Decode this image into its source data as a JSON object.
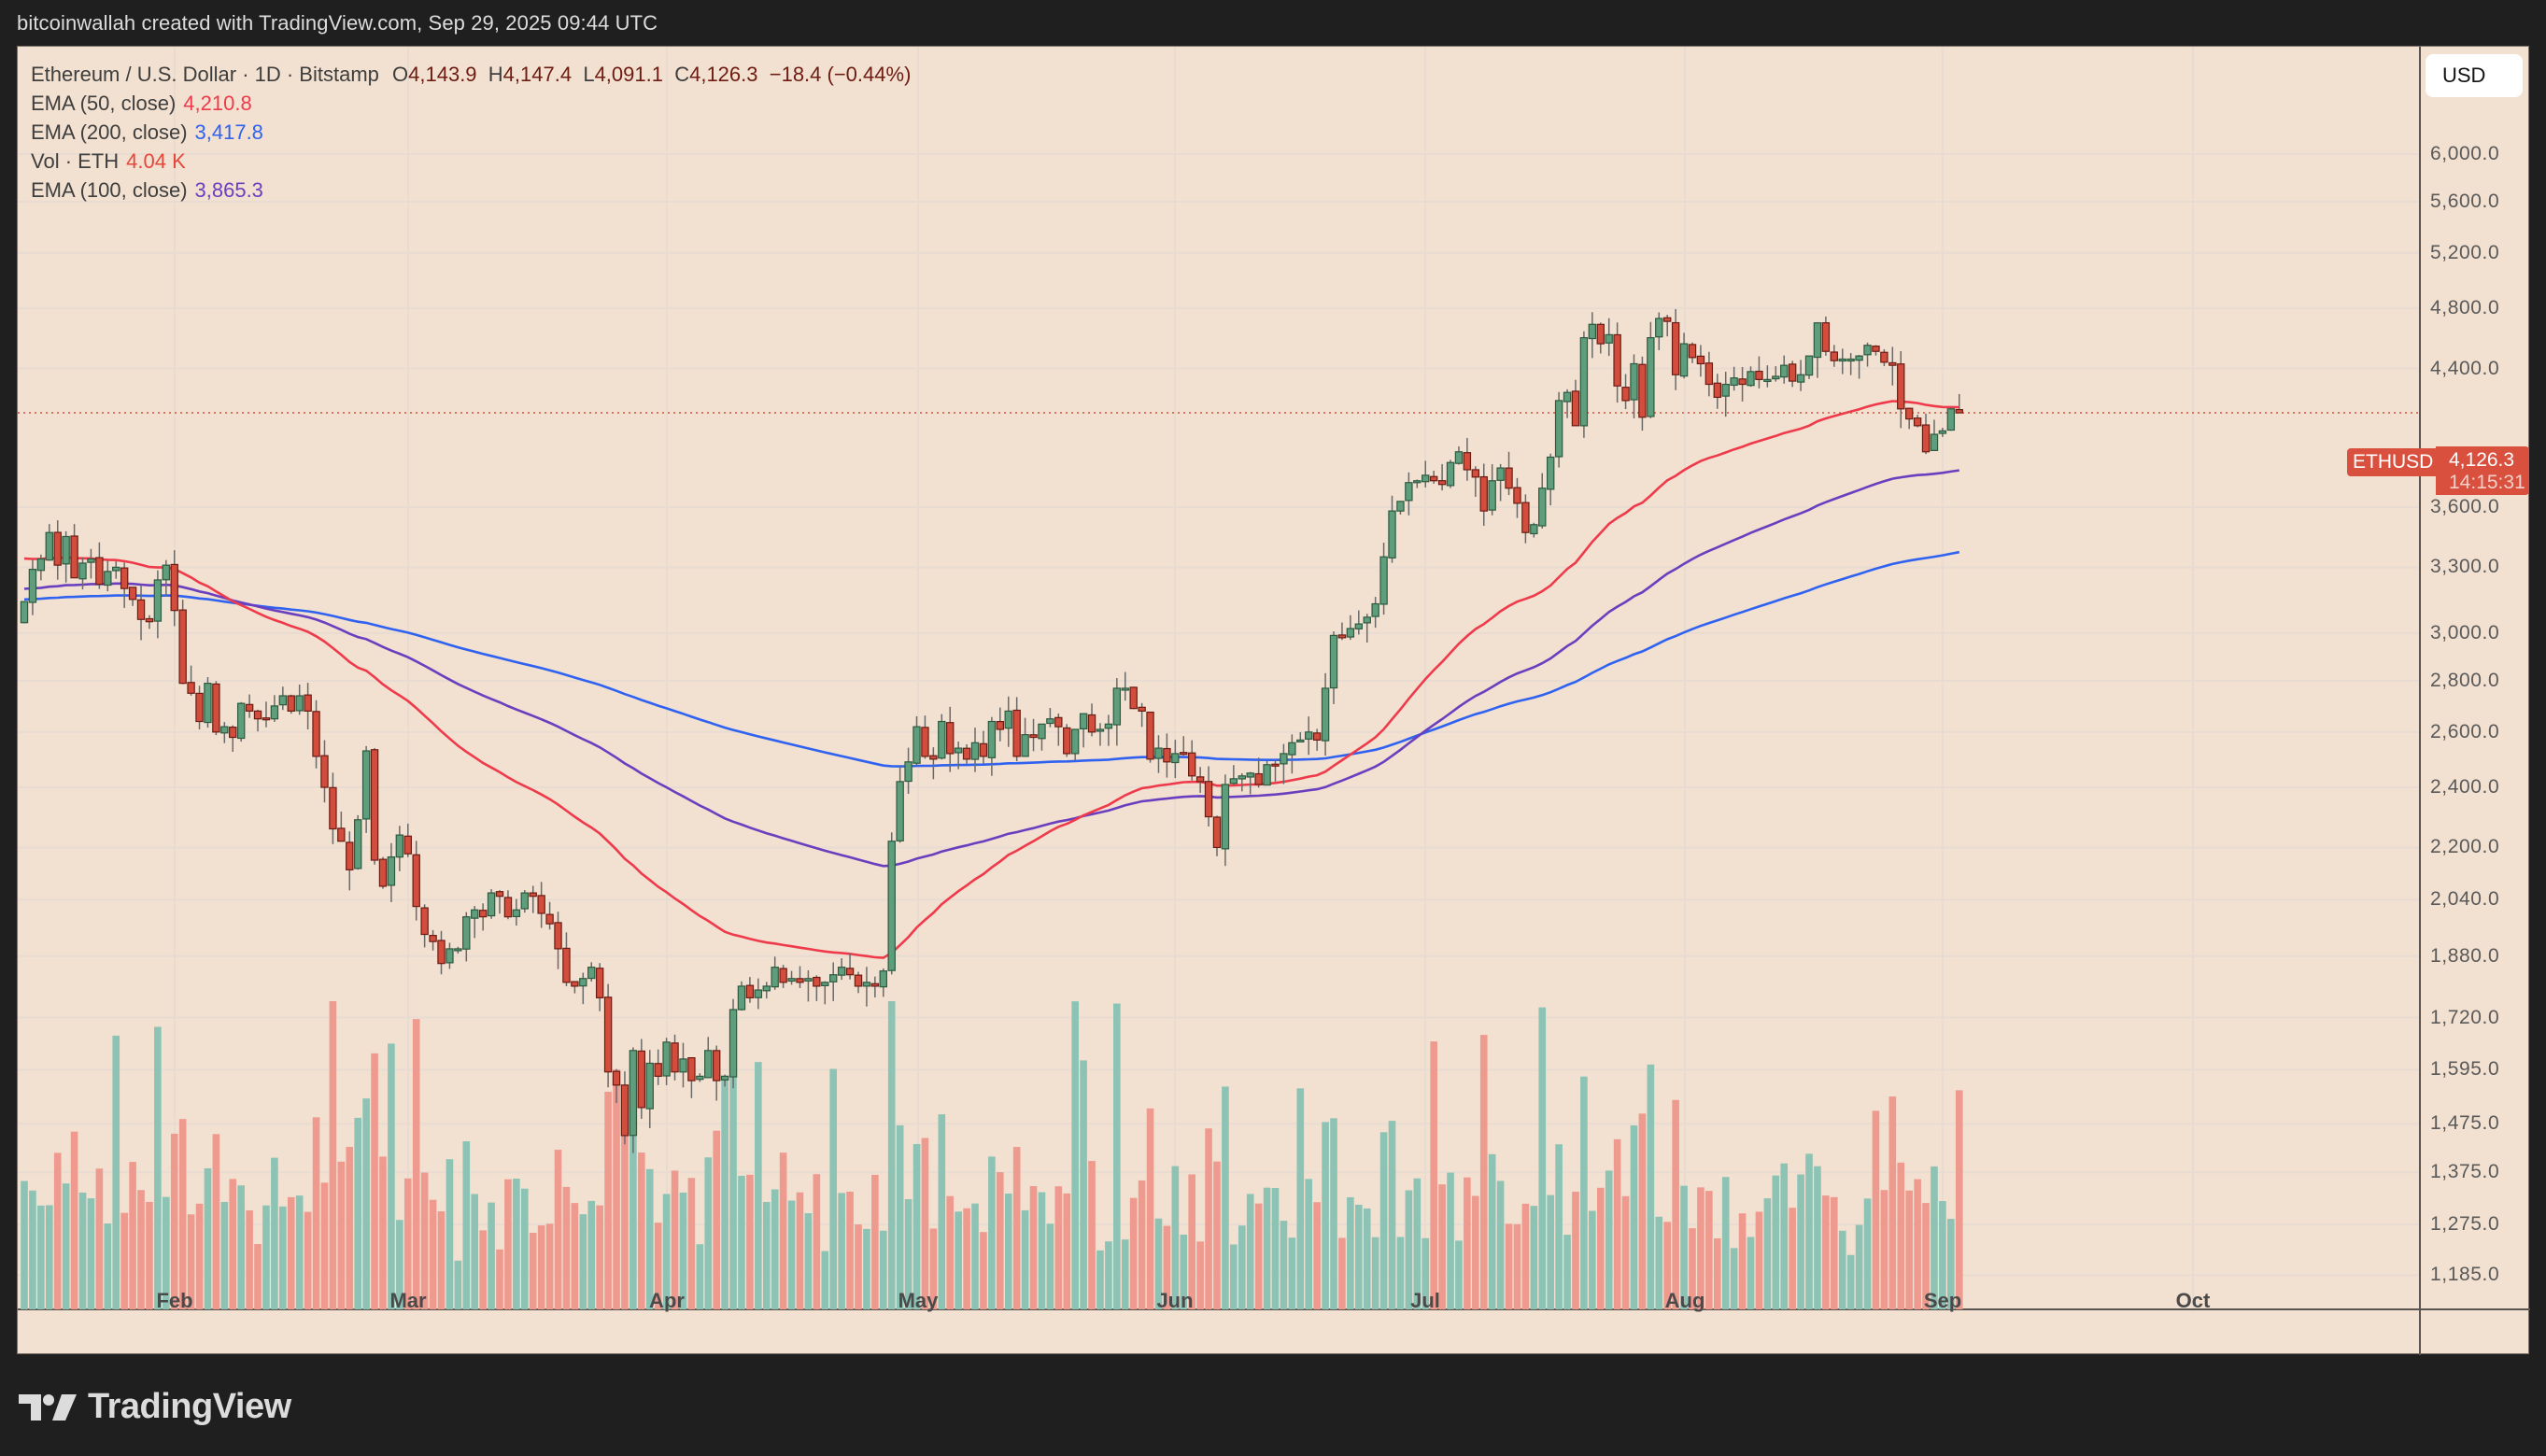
{
  "attribution": "bitcoinwallah created with TradingView.com, Sep 29, 2025 09:44 UTC",
  "legend": {
    "symbol": "Ethereum / U.S. Dollar · 1D · Bitstamp",
    "open_label": "O",
    "open": "4,143.9",
    "high_label": "H",
    "high": "4,147.4",
    "low_label": "L",
    "low": "4,091.1",
    "close_label": "C",
    "close": "4,126.3",
    "change": "−18.4 (−0.44%)",
    "ema50_label": "EMA (50, close)",
    "ema50": "4,210.8",
    "ema200_label": "EMA (200, close)",
    "ema200": "3,417.8",
    "vol_label": "Vol · ETH",
    "vol": "4.04 K",
    "ema100_label": "EMA (100, close)",
    "ema100": "3,865.3"
  },
  "currency_button": "USD",
  "price_tag": {
    "symbol": "ETHUSD",
    "price": "4,126.3",
    "countdown": "14:15:31"
  },
  "price_axis": [
    "6,000.0",
    "5,600.0",
    "5,200.0",
    "4,800.0",
    "4,400.0",
    "3,600.0",
    "3,300.0",
    "3,000.0",
    "2,800.0",
    "2,600.0",
    "2,400.0",
    "2,200.0",
    "2,040.0",
    "1,880.0",
    "1,720.0",
    "1,595.0",
    "1,475.0",
    "1,375.0",
    "1,275.0",
    "1,185.0"
  ],
  "time_axis": [
    "Feb",
    "Mar",
    "Apr",
    "May",
    "Jun",
    "Jul",
    "Aug",
    "Sep",
    "Oct"
  ],
  "logo_text": "TradingView",
  "colors": {
    "background": "#f2e0d0",
    "up": "#5f9e7c",
    "down": "#d34d3d",
    "vol_up": "#8cc3b4",
    "vol_down": "#ee9a8e",
    "ema50": "#ee3a4a",
    "ema100": "#6a3fbf",
    "ema200": "#2f62f0",
    "price_tag": "#d9503e"
  },
  "chart_data": {
    "type": "candlestick",
    "title": "Ethereum / U.S. Dollar · 1D · Bitstamp",
    "xlabel": "",
    "ylabel": "USD",
    "yscale": "log",
    "ylim": [
      1100,
      6400
    ],
    "x_start": "2025-01-13",
    "x_end": "2025-09-29",
    "closes": [
      3140,
      3290,
      3340,
      3470,
      3310,
      3450,
      3250,
      3320,
      3340,
      3220,
      3280,
      3300,
      3200,
      3150,
      3060,
      3050,
      3240,
      3310,
      3100,
      2790,
      2750,
      2640,
      2790,
      2600,
      2620,
      2580,
      2710,
      2680,
      2650,
      2650,
      2700,
      2740,
      2680,
      2740,
      2680,
      2510,
      2400,
      2260,
      2220,
      2130,
      2290,
      2530,
      2160,
      2080,
      2170,
      2240,
      2180,
      2020,
      1940,
      1920,
      1860,
      1900,
      1900,
      1990,
      2010,
      1990,
      2060,
      2050,
      1990,
      2010,
      2060,
      2050,
      2000,
      1970,
      1900,
      1810,
      1800,
      1820,
      1850,
      1770,
      1590,
      1560,
      1450,
      1640,
      1510,
      1610,
      1580,
      1660,
      1590,
      1620,
      1570,
      1580,
      1640,
      1570,
      1580,
      1740,
      1800,
      1770,
      1790,
      1800,
      1850,
      1810,
      1820,
      1810,
      1820,
      1800,
      1810,
      1830,
      1850,
      1830,
      1800,
      1810,
      1800,
      1840,
      2220,
      2420,
      2490,
      2620,
      2510,
      2500,
      2640,
      2520,
      2540,
      2500,
      2560,
      2510,
      2640,
      2610,
      2680,
      2510,
      2590,
      2580,
      2630,
      2650,
      2620,
      2520,
      2610,
      2670,
      2600,
      2610,
      2630,
      2770,
      2770,
      2690,
      2680,
      2500,
      2540,
      2490,
      2520,
      2520,
      2440,
      2420,
      2300,
      2200,
      2410,
      2430,
      2440,
      2450,
      2410,
      2480,
      2480,
      2520,
      2560,
      2570,
      2600,
      2570,
      2770,
      2990,
      2980,
      3020,
      3040,
      3070,
      3130,
      3350,
      3580,
      3630,
      3730,
      3740,
      3770,
      3740,
      3720,
      3840,
      3900,
      3800,
      3760,
      3580,
      3740,
      3810,
      3700,
      3620,
      3470,
      3510,
      3700,
      3870,
      4200,
      4250,
      4050,
      4600,
      4690,
      4560,
      4620,
      4290,
      4200,
      4430,
      4100,
      4600,
      4730,
      4710,
      4360,
      4560,
      4470,
      4430,
      4300,
      4220,
      4300,
      4340,
      4300,
      4380,
      4330,
      4330,
      4350,
      4420,
      4320,
      4360,
      4480,
      4700,
      4510,
      4450,
      4460,
      4460,
      4480,
      4550,
      4510,
      4440,
      4420,
      4150,
      4090,
      4050,
      3900,
      4000,
      4020,
      4150,
      4126
    ]
  }
}
